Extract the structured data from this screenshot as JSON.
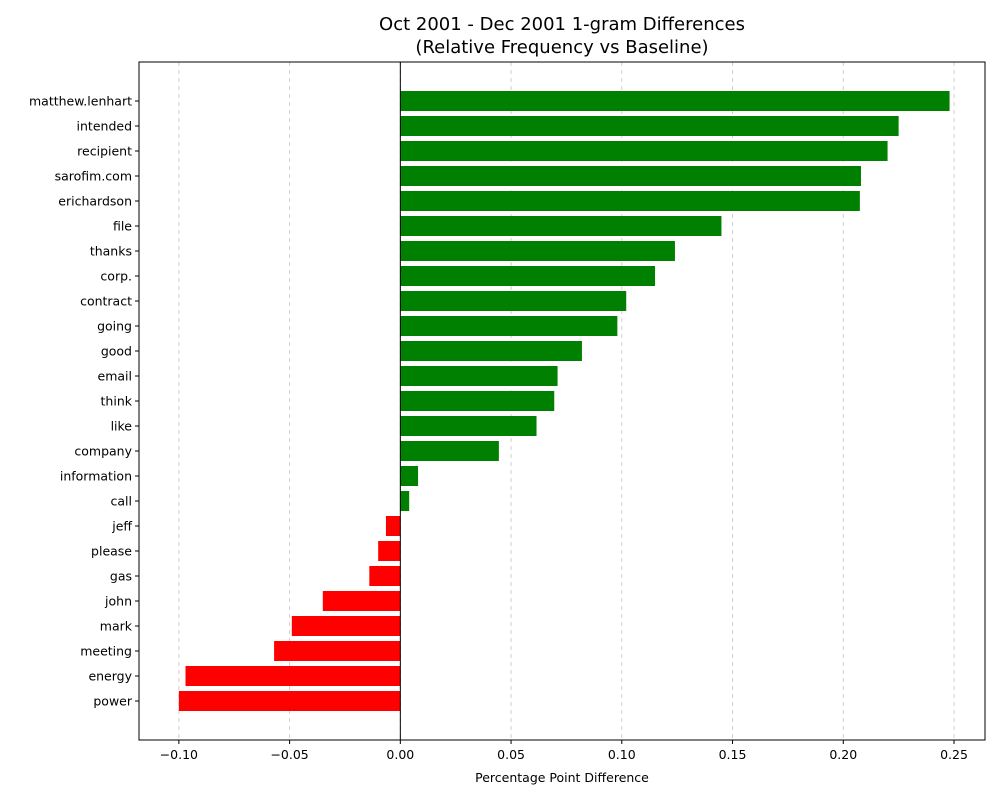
{
  "chart_data": {
    "type": "bar",
    "orientation": "horizontal",
    "title": "Oct 2001 - Dec 2001 1-gram Differences",
    "subtitle": "(Relative Frequency vs Baseline)",
    "xlabel": "Percentage Point Difference",
    "ylabel": "",
    "xlim": [
      -0.118,
      0.264
    ],
    "xticks": [
      -0.1,
      -0.05,
      0.0,
      0.05,
      0.1,
      0.15,
      0.2,
      0.25
    ],
    "xtick_labels": [
      "−0.10",
      "−0.05",
      "0.00",
      "0.05",
      "0.10",
      "0.15",
      "0.20",
      "0.25"
    ],
    "grid": "x-dashed",
    "colors": {
      "positive": "#008000",
      "negative": "#ff0000",
      "grid": "#d0d0d0",
      "axis": "#000000"
    },
    "categories": [
      "matthew.lenhart",
      "intended",
      "recipient",
      "sarofim.com",
      "erichardson",
      "file",
      "thanks",
      "corp.",
      "contract",
      "going",
      "good",
      "email",
      "think",
      "like",
      "company",
      "information",
      "call",
      "jeff",
      "please",
      "gas",
      "john",
      "mark",
      "meeting",
      "energy",
      "power"
    ],
    "values": [
      0.248,
      0.225,
      0.22,
      0.208,
      0.2075,
      0.145,
      0.124,
      0.115,
      0.102,
      0.098,
      0.082,
      0.071,
      0.0695,
      0.0615,
      0.0445,
      0.008,
      0.004,
      -0.0065,
      -0.01,
      -0.014,
      -0.035,
      -0.049,
      -0.057,
      -0.097,
      -0.1
    ]
  }
}
